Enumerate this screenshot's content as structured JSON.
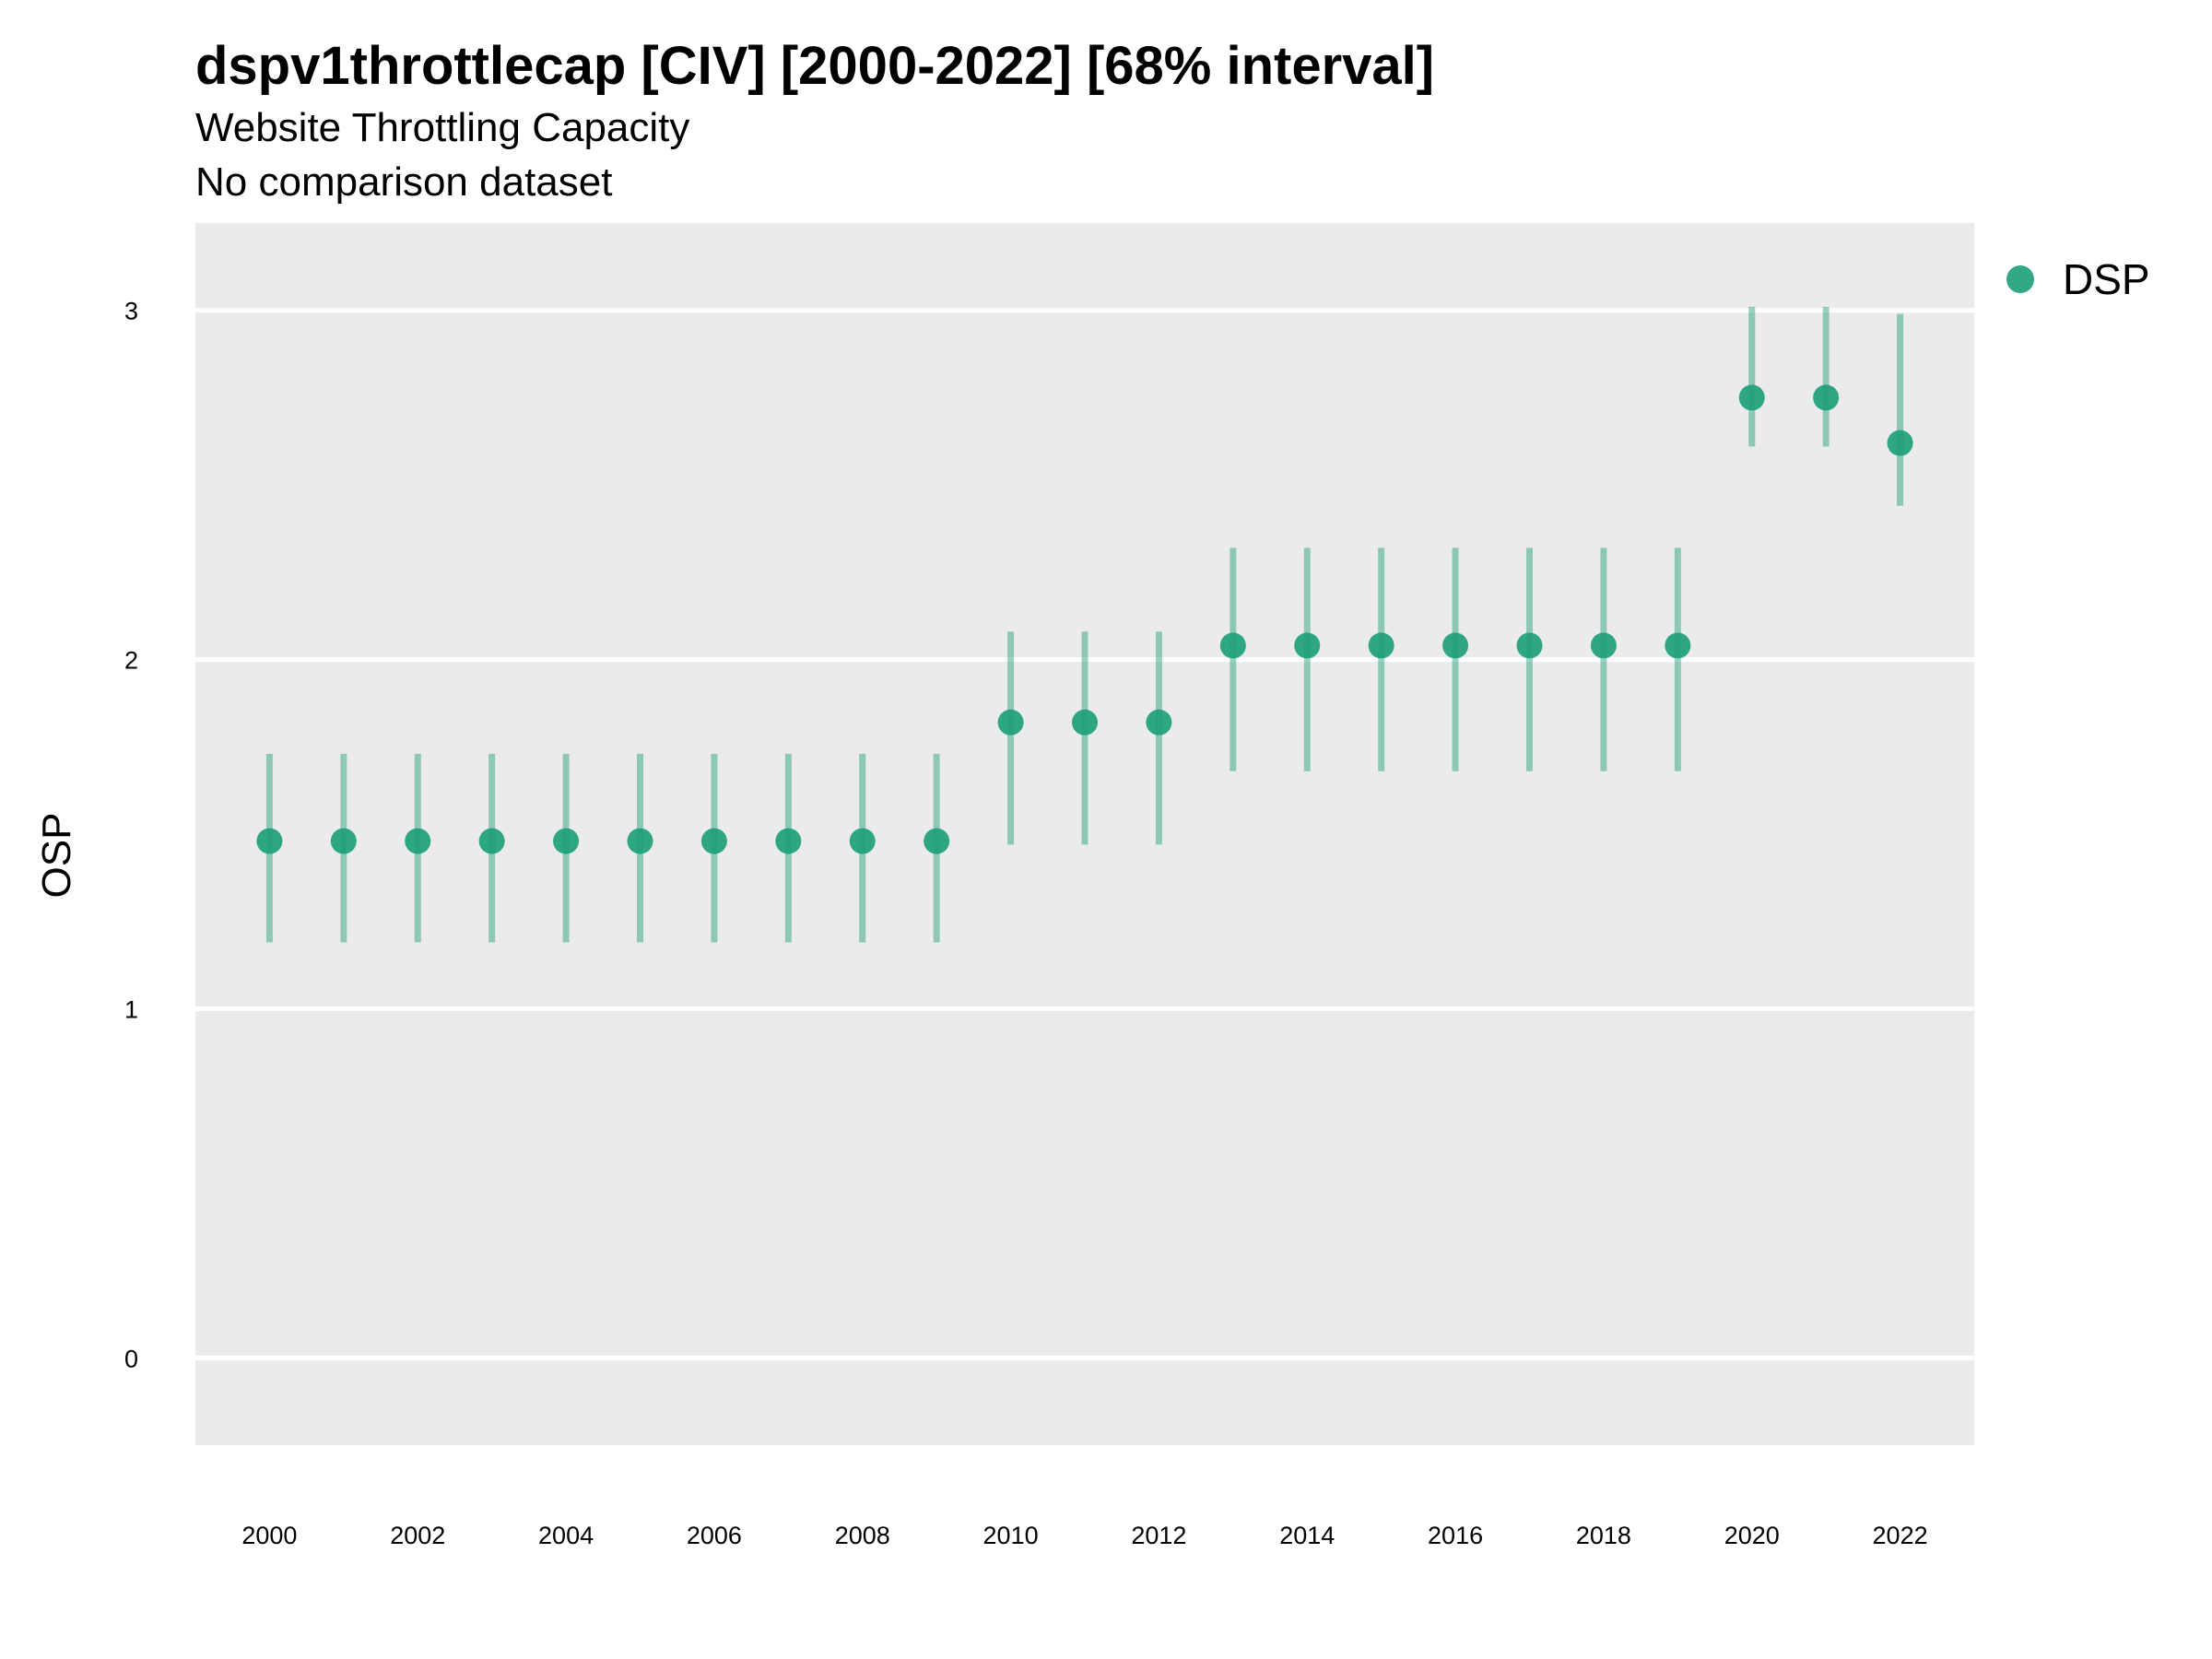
{
  "chart_data": {
    "type": "scatter",
    "title": "dspv1throttlecap [CIV] [2000-2022] [68% interval]",
    "subtitle": "Website Throttling Capacity",
    "subtitle2": "No comparison dataset",
    "xlabel": "",
    "ylabel": "OSP",
    "xlim": [
      1999,
      2023
    ],
    "ylim": [
      -0.25,
      3.25
    ],
    "x_ticks": [
      "2000",
      "2002",
      "2004",
      "2006",
      "2008",
      "2010",
      "2012",
      "2014",
      "2016",
      "2018",
      "2020",
      "2022"
    ],
    "y_ticks": [
      "0",
      "1",
      "2",
      "3"
    ],
    "grid": true,
    "legend_position": "top-right",
    "colors": {
      "series": "#1b9e77",
      "panel": "#ebebeb",
      "grid": "#ffffff"
    },
    "series": [
      {
        "name": "DSP",
        "x": [
          2000,
          2001,
          2002,
          2003,
          2004,
          2005,
          2006,
          2007,
          2008,
          2009,
          2010,
          2011,
          2012,
          2013,
          2014,
          2015,
          2016,
          2017,
          2018,
          2019,
          2020,
          2021,
          2022
        ],
        "y": [
          1.48,
          1.48,
          1.48,
          1.48,
          1.48,
          1.48,
          1.48,
          1.48,
          1.48,
          1.48,
          1.82,
          1.82,
          1.82,
          2.04,
          2.04,
          2.04,
          2.04,
          2.04,
          2.04,
          2.04,
          2.75,
          2.75,
          2.62
        ],
        "lower": [
          1.19,
          1.19,
          1.19,
          1.19,
          1.19,
          1.19,
          1.19,
          1.19,
          1.19,
          1.19,
          1.47,
          1.47,
          1.47,
          1.68,
          1.68,
          1.68,
          1.68,
          1.68,
          1.68,
          1.68,
          2.61,
          2.61,
          2.44
        ],
        "upper": [
          1.73,
          1.73,
          1.73,
          1.73,
          1.73,
          1.73,
          1.73,
          1.73,
          1.73,
          1.73,
          2.08,
          2.08,
          2.08,
          2.32,
          2.32,
          2.32,
          2.32,
          2.32,
          2.32,
          2.32,
          3.01,
          3.01,
          2.99
        ]
      }
    ]
  }
}
